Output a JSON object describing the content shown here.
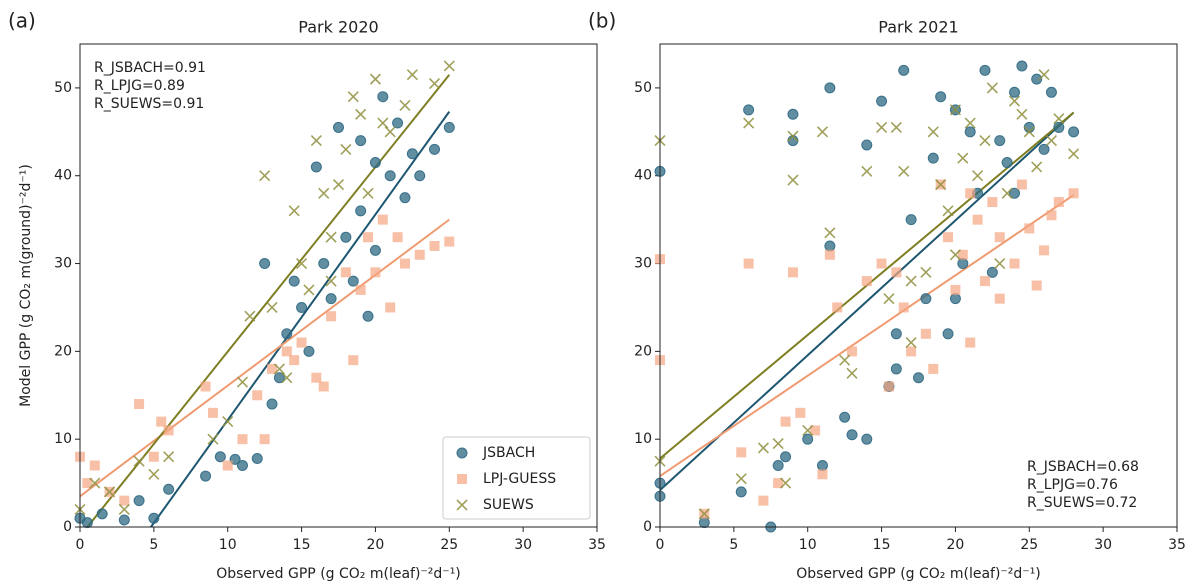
{
  "chart_data": [
    {
      "type": "scatter",
      "subplot_label": "(a)",
      "title": "Park 2020",
      "x_label": "Observed GPP (g CO₂ m(leaf)⁻²d⁻¹)",
      "y_label": "Model GPP (g CO₂ m(ground)⁻²d⁻¹)",
      "xlim": [
        0,
        35
      ],
      "ylim": [
        0,
        55
      ],
      "xticks": [
        0,
        5,
        10,
        15,
        20,
        25,
        30,
        35
      ],
      "yticks": [
        0,
        10,
        20,
        30,
        40,
        50
      ],
      "legend": "lower right",
      "annotation_corner": "upper left",
      "annotations": [
        "R_JSBACH=0.91",
        "R_LPJG=0.89",
        "R_SUEWS=0.91"
      ],
      "series": [
        {
          "name": "JSBACH",
          "marker": "o",
          "color": "#2d6883",
          "fit_color": "#1d5670",
          "x": [
            0,
            0.5,
            1.5,
            3,
            4,
            5,
            6,
            8.5,
            9.5,
            10.5,
            11,
            12,
            12.5,
            13,
            13.5,
            14,
            14.5,
            15,
            15.5,
            16,
            16.5,
            17,
            17.5,
            18,
            18.5,
            19,
            19.5,
            20,
            20.5,
            21,
            21.5,
            22,
            22.5,
            23,
            24,
            25,
            20,
            19
          ],
          "values": [
            1,
            0.5,
            1.5,
            0.8,
            3,
            1,
            4.3,
            5.8,
            8,
            7.7,
            7,
            7.8,
            30,
            14,
            17,
            22,
            28,
            25,
            20,
            41,
            30,
            26,
            45.5,
            33,
            28,
            44,
            24,
            41.5,
            49,
            40,
            46,
            37.5,
            42.5,
            40,
            43,
            45.5,
            31.5,
            36
          ],
          "fit": {
            "x": [
              4.8,
              25
            ],
            "y": [
              0,
              47.3
            ]
          }
        },
        {
          "name": "LPJ-GUESS",
          "marker": "s",
          "color": "#f4a582",
          "fit_color": "#f09a70",
          "x": [
            0,
            0.5,
            1,
            2,
            3,
            4,
            5,
            5.5,
            6,
            8.5,
            9,
            10,
            11,
            12,
            13,
            14,
            14.5,
            15,
            16,
            17,
            18,
            18.5,
            19,
            20,
            20.5,
            21,
            21.5,
            22,
            23,
            24,
            25,
            16.5,
            19.5,
            12.5
          ],
          "values": [
            8,
            5,
            7,
            4,
            3,
            14,
            8,
            12,
            11,
            16,
            13,
            7,
            10,
            15,
            18,
            20,
            19,
            21,
            17,
            24,
            29,
            19,
            27,
            29,
            35,
            25,
            33,
            30,
            31,
            32,
            32.5,
            16,
            33,
            10
          ],
          "fit": {
            "x": [
              0,
              25
            ],
            "y": [
              3.5,
              35
            ]
          }
        },
        {
          "name": "SUEWS",
          "marker": "x",
          "color": "#8f8f3e",
          "fit_color": "#7e7e22",
          "x": [
            0,
            1,
            2,
            3,
            4,
            5,
            6,
            9,
            10,
            11,
            11.5,
            12.5,
            13,
            14,
            14.5,
            15,
            16,
            16.5,
            17,
            17.5,
            18,
            18.5,
            19,
            20,
            20.5,
            21,
            22,
            22.5,
            24,
            25,
            15.5,
            17,
            19.5,
            13.5
          ],
          "values": [
            2,
            5,
            4,
            2,
            7.5,
            6,
            8,
            10,
            12,
            16.5,
            24,
            40,
            25,
            17,
            36,
            30,
            44,
            38,
            33,
            39,
            43,
            49,
            47,
            51,
            46,
            45,
            48,
            51.5,
            50.5,
            52.5,
            27,
            28,
            38,
            18
          ],
          "fit": {
            "x": [
              0.5,
              25
            ],
            "y": [
              0,
              51.5
            ]
          }
        }
      ]
    },
    {
      "type": "scatter",
      "subplot_label": "(b)",
      "title": "Park 2021",
      "x_label": "Observed GPP (g CO₂ m(leaf)⁻²d⁻¹)",
      "xlim": [
        0,
        35
      ],
      "ylim": [
        0,
        55
      ],
      "xticks": [
        0,
        5,
        10,
        15,
        20,
        25,
        30,
        35
      ],
      "yticks": [
        0,
        10,
        20,
        30,
        40,
        50
      ],
      "annotation_corner": "lower right",
      "annotations": [
        "R_JSBACH=0.68",
        "R_LPJG=0.76",
        "R_SUEWS=0.72"
      ],
      "series": [
        {
          "name": "JSBACH",
          "marker": "o",
          "color": "#2d6883",
          "fit_color": "#1d5670",
          "x": [
            0,
            0,
            0,
            3,
            5.5,
            6,
            7.5,
            8,
            8.5,
            9,
            9,
            10,
            11,
            11.5,
            11.5,
            12.5,
            13,
            14,
            14,
            15,
            15.5,
            16,
            16.5,
            17,
            17.5,
            18,
            18.5,
            19,
            19.5,
            20,
            20.5,
            21,
            21.5,
            22,
            22.5,
            23,
            23.5,
            24,
            24.5,
            25,
            25.5,
            26,
            26.5,
            27,
            28,
            24,
            20,
            16
          ],
          "values": [
            40.5,
            5,
            3.5,
            0.5,
            4,
            47.5,
            0,
            7,
            8,
            47,
            44,
            10,
            7,
            50,
            32,
            12.5,
            10.5,
            10,
            43.5,
            48.5,
            16,
            22,
            52,
            35,
            17,
            26,
            42,
            49,
            22,
            47.5,
            30,
            45,
            38,
            52,
            29,
            44,
            41.5,
            49.5,
            52.5,
            45.5,
            51,
            43,
            49.5,
            45.5,
            45,
            38,
            26,
            18
          ],
          "fit": {
            "x": [
              0,
              28
            ],
            "y": [
              4.2,
              47.2
            ]
          }
        },
        {
          "name": "LPJ-GUESS",
          "marker": "s",
          "color": "#f4a582",
          "fit_color": "#f09a70",
          "x": [
            0,
            0,
            3,
            5.5,
            6,
            7,
            8,
            8.5,
            9,
            9.5,
            10.5,
            11,
            11.5,
            12,
            13,
            14,
            15,
            15.5,
            16,
            16.5,
            17,
            18,
            18.5,
            19,
            19.5,
            20,
            20.5,
            21,
            21.5,
            22,
            22.5,
            23,
            24,
            24.5,
            25,
            25.5,
            26,
            26.5,
            27,
            28,
            21,
            23
          ],
          "values": [
            30.5,
            19,
            1.5,
            8.5,
            30,
            3,
            5,
            12,
            29,
            13,
            11,
            6,
            31,
            25,
            20,
            28,
            30,
            16,
            29,
            25,
            20,
            22,
            18,
            39,
            33,
            27,
            31,
            38,
            35,
            28,
            37,
            33,
            30,
            39,
            34,
            27.5,
            31.5,
            35.5,
            37,
            38,
            21,
            26
          ],
          "fit": {
            "x": [
              0,
              28
            ],
            "y": [
              5.8,
              37.8
            ]
          }
        },
        {
          "name": "SUEWS",
          "marker": "x",
          "color": "#8f8f3e",
          "fit_color": "#7e7e22",
          "x": [
            0,
            0,
            3,
            5.5,
            6,
            7,
            8,
            8.5,
            9,
            9,
            10,
            11,
            11.5,
            12.5,
            13,
            14,
            15,
            15.5,
            16,
            16.5,
            17,
            18,
            18.5,
            19,
            19.5,
            20,
            20.5,
            21,
            21.5,
            22,
            22.5,
            23,
            23.5,
            24,
            24.5,
            25,
            25.5,
            26,
            26.5,
            27,
            28,
            20,
            17
          ],
          "values": [
            44,
            7.5,
            1.5,
            5.5,
            46,
            9,
            9.5,
            5,
            44.5,
            39.5,
            11,
            45,
            33.5,
            19,
            17.5,
            40.5,
            45.5,
            26,
            45.5,
            40.5,
            28,
            29,
            45,
            39,
            36,
            47.5,
            42,
            46,
            40,
            44,
            50,
            30,
            38,
            48.5,
            47,
            45,
            41,
            51.5,
            44,
            46.5,
            42.5,
            31,
            21
          ],
          "fit": {
            "x": [
              0,
              28
            ],
            "y": [
              7.8,
              47.2
            ]
          }
        }
      ]
    }
  ]
}
